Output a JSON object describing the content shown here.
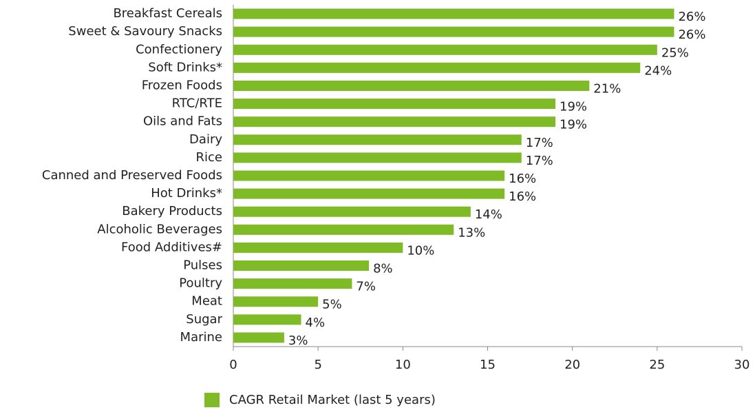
{
  "chart_data": {
    "type": "bar",
    "orientation": "horizontal",
    "categories": [
      "Breakfast Cereals",
      "Sweet & Savoury Snacks",
      "Confectionery",
      "Soft Drinks*",
      "Frozen Foods",
      "RTC/RTE",
      "Oils and Fats",
      "Dairy",
      "Rice",
      "Canned and Preserved Foods",
      "Hot Drinks*",
      "Bakery Products",
      "Alcoholic Beverages",
      "Food Additives#",
      "Pulses",
      "Poultry",
      "Meat",
      "Sugar",
      "Marine"
    ],
    "series": [
      {
        "name": "CAGR Retail Market (last 5 years)",
        "color": "#7fba27",
        "values": [
          26,
          26,
          25,
          24,
          21,
          19,
          19,
          17,
          17,
          16,
          16,
          14,
          13,
          10,
          8,
          7,
          5,
          4,
          3
        ],
        "value_labels": [
          "26%",
          "26%",
          "25%",
          "24%",
          "21%",
          "19%",
          "19%",
          "17%",
          "17%",
          "16%",
          "16%",
          "14%",
          "13%",
          "10%",
          "8%",
          "7%",
          "5%",
          "4%",
          "3%"
        ]
      }
    ],
    "xlim": [
      0,
      30
    ],
    "xticks": [
      0,
      5,
      10,
      15,
      20,
      25,
      30
    ],
    "legend": "bottom"
  }
}
